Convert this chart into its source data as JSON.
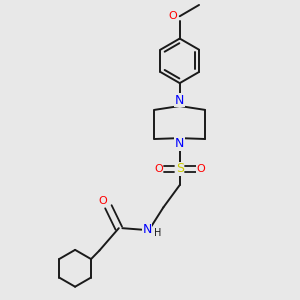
{
  "background_color": "#e8e8e8",
  "bond_color": "#1a1a1a",
  "nitrogen_color": "#0000ff",
  "oxygen_color": "#ff0000",
  "sulfur_color": "#cccc00",
  "figsize": [
    3.0,
    3.0
  ],
  "dpi": 100,
  "xlim": [
    0,
    10
  ],
  "ylim": [
    0,
    10
  ]
}
